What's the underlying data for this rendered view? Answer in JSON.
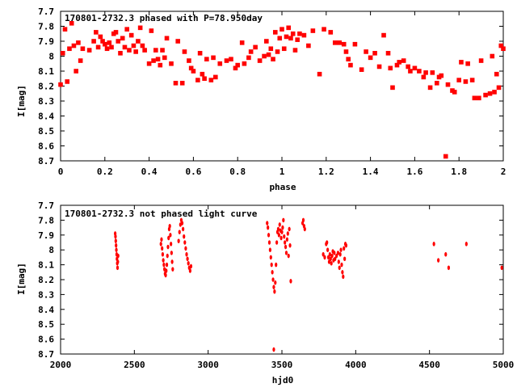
{
  "chart_data": [
    {
      "type": "scatter",
      "title": "170801-2732.3 phased with P=78.950day",
      "xlabel": "phase",
      "ylabel": "I[mag]",
      "xlim": [
        0,
        2
      ],
      "ylim": [
        7.7,
        8.7
      ],
      "y_inverted": true,
      "grid": false,
      "marker_color": "#ff0000",
      "xticks": [
        "0",
        "0.2",
        "0.4",
        "0.6",
        "0.8",
        "1",
        "1.2",
        "1.4",
        "1.6",
        "1.8",
        "2"
      ],
      "yticks": [
        "7.7",
        "7.8",
        "7.9",
        "8",
        "8.1",
        "8.2",
        "8.3",
        "8.4",
        "8.5",
        "8.6",
        "8.7"
      ],
      "points": [
        [
          0.0,
          8.19
        ],
        [
          0.01,
          7.98
        ],
        [
          0.02,
          7.82
        ],
        [
          0.03,
          8.17
        ],
        [
          0.04,
          7.95
        ],
        [
          0.05,
          7.78
        ],
        [
          0.06,
          7.93
        ],
        [
          0.07,
          8.1
        ],
        [
          0.08,
          7.91
        ],
        [
          0.09,
          8.03
        ],
        [
          0.1,
          7.95
        ],
        [
          0.13,
          7.96
        ],
        [
          0.15,
          7.9
        ],
        [
          0.16,
          7.84
        ],
        [
          0.17,
          7.94
        ],
        [
          0.18,
          7.87
        ],
        [
          0.19,
          7.9
        ],
        [
          0.2,
          7.92
        ],
        [
          0.21,
          7.95
        ],
        [
          0.22,
          7.91
        ],
        [
          0.23,
          7.94
        ],
        [
          0.24,
          7.85
        ],
        [
          0.25,
          7.84
        ],
        [
          0.26,
          7.9
        ],
        [
          0.27,
          7.98
        ],
        [
          0.28,
          7.88
        ],
        [
          0.29,
          7.94
        ],
        [
          0.3,
          7.82
        ],
        [
          0.31,
          7.96
        ],
        [
          0.32,
          7.86
        ],
        [
          0.33,
          7.93
        ],
        [
          0.34,
          7.97
        ],
        [
          0.35,
          7.9
        ],
        [
          0.36,
          7.81
        ],
        [
          0.37,
          7.93
        ],
        [
          0.38,
          7.96
        ],
        [
          0.4,
          8.05
        ],
        [
          0.41,
          7.83
        ],
        [
          0.42,
          8.03
        ],
        [
          0.43,
          7.96
        ],
        [
          0.44,
          8.02
        ],
        [
          0.45,
          8.06
        ],
        [
          0.46,
          7.96
        ],
        [
          0.47,
          8.01
        ],
        [
          0.48,
          7.88
        ],
        [
          0.5,
          8.05
        ],
        [
          0.52,
          8.18
        ],
        [
          0.53,
          7.9
        ],
        [
          0.55,
          8.18
        ],
        [
          0.56,
          7.97
        ],
        [
          0.58,
          8.03
        ],
        [
          0.59,
          8.08
        ],
        [
          0.6,
          8.1
        ],
        [
          0.62,
          8.16
        ],
        [
          0.63,
          7.98
        ],
        [
          0.64,
          8.12
        ],
        [
          0.65,
          8.15
        ],
        [
          0.66,
          8.02
        ],
        [
          0.68,
          8.16
        ],
        [
          0.69,
          8.01
        ],
        [
          0.7,
          8.14
        ],
        [
          0.72,
          8.05
        ],
        [
          0.75,
          8.03
        ],
        [
          0.77,
          8.02
        ],
        [
          0.79,
          8.08
        ],
        [
          0.8,
          8.06
        ],
        [
          0.82,
          7.91
        ],
        [
          0.83,
          8.05
        ],
        [
          0.85,
          8.01
        ],
        [
          0.86,
          7.97
        ],
        [
          0.88,
          7.94
        ],
        [
          0.9,
          8.03
        ],
        [
          0.92,
          8.0
        ],
        [
          0.93,
          7.9
        ],
        [
          0.94,
          7.99
        ],
        [
          0.95,
          7.95
        ],
        [
          0.96,
          8.02
        ],
        [
          0.97,
          7.84
        ],
        [
          0.98,
          7.97
        ],
        [
          0.99,
          7.88
        ],
        [
          1.0,
          7.82
        ],
        [
          1.01,
          7.95
        ],
        [
          1.02,
          7.87
        ],
        [
          1.03,
          7.81
        ],
        [
          1.04,
          7.88
        ],
        [
          1.05,
          7.85
        ],
        [
          1.06,
          7.96
        ],
        [
          1.07,
          7.89
        ],
        [
          1.08,
          7.85
        ],
        [
          1.1,
          7.86
        ],
        [
          1.12,
          7.93
        ],
        [
          1.14,
          7.83
        ],
        [
          1.17,
          8.12
        ],
        [
          1.19,
          7.82
        ],
        [
          1.22,
          7.84
        ],
        [
          1.24,
          7.91
        ],
        [
          1.26,
          7.91
        ],
        [
          1.28,
          7.92
        ],
        [
          1.29,
          7.97
        ],
        [
          1.3,
          8.02
        ],
        [
          1.31,
          8.06
        ],
        [
          1.33,
          7.92
        ],
        [
          1.36,
          8.09
        ],
        [
          1.38,
          7.97
        ],
        [
          1.4,
          8.01
        ],
        [
          1.42,
          7.98
        ],
        [
          1.44,
          8.07
        ],
        [
          1.46,
          7.86
        ],
        [
          1.48,
          7.98
        ],
        [
          1.49,
          8.08
        ],
        [
          1.5,
          8.21
        ],
        [
          1.52,
          8.06
        ],
        [
          1.53,
          8.04
        ],
        [
          1.55,
          8.03
        ],
        [
          1.57,
          8.07
        ],
        [
          1.58,
          8.1
        ],
        [
          1.6,
          8.08
        ],
        [
          1.62,
          8.1
        ],
        [
          1.64,
          8.14
        ],
        [
          1.65,
          8.11
        ],
        [
          1.67,
          8.21
        ],
        [
          1.68,
          8.11
        ],
        [
          1.7,
          8.18
        ],
        [
          1.71,
          8.14
        ],
        [
          1.72,
          8.13
        ],
        [
          1.74,
          8.67
        ],
        [
          1.75,
          8.19
        ],
        [
          1.77,
          8.23
        ],
        [
          1.78,
          8.24
        ],
        [
          1.8,
          8.16
        ],
        [
          1.81,
          8.04
        ],
        [
          1.83,
          8.17
        ],
        [
          1.84,
          8.05
        ],
        [
          1.86,
          8.16
        ],
        [
          1.87,
          8.28
        ],
        [
          1.89,
          8.28
        ],
        [
          1.9,
          8.03
        ],
        [
          1.92,
          8.26
        ],
        [
          1.94,
          8.25
        ],
        [
          1.95,
          8.0
        ],
        [
          1.96,
          8.24
        ],
        [
          1.97,
          8.12
        ],
        [
          1.98,
          8.21
        ],
        [
          1.99,
          7.93
        ],
        [
          2.0,
          7.95
        ]
      ]
    },
    {
      "type": "scatter",
      "title": "170801-2732.3 not phased light curve",
      "xlabel": "hjd0",
      "ylabel": "I[mag]",
      "xlim": [
        2000,
        5000
      ],
      "ylim": [
        7.7,
        8.7
      ],
      "y_inverted": true,
      "grid": false,
      "marker_color": "#ff0000",
      "xticks": [
        "2000",
        "2500",
        "3000",
        "3500",
        "4000",
        "4500",
        "5000"
      ],
      "yticks": [
        "7.7",
        "7.8",
        "7.9",
        "8",
        "8.1",
        "8.2",
        "8.3",
        "8.4",
        "8.5",
        "8.6",
        "8.7"
      ],
      "points": [
        [
          2370,
          7.89
        ],
        [
          2372,
          7.91
        ],
        [
          2374,
          7.94
        ],
        [
          2376,
          7.97
        ],
        [
          2378,
          8.0
        ],
        [
          2380,
          8.03
        ],
        [
          2382,
          8.06
        ],
        [
          2384,
          8.09
        ],
        [
          2386,
          8.12
        ],
        [
          2388,
          8.08
        ],
        [
          2390,
          8.04
        ],
        [
          2680,
          7.96
        ],
        [
          2684,
          7.93
        ],
        [
          2688,
          7.99
        ],
        [
          2692,
          8.03
        ],
        [
          2696,
          8.07
        ],
        [
          2700,
          8.1
        ],
        [
          2704,
          8.13
        ],
        [
          2708,
          8.16
        ],
        [
          2712,
          8.17
        ],
        [
          2716,
          8.14
        ],
        [
          2720,
          8.1
        ],
        [
          2724,
          8.04
        ],
        [
          2728,
          7.98
        ],
        [
          2732,
          7.92
        ],
        [
          2736,
          7.86
        ],
        [
          2740,
          7.84
        ],
        [
          2744,
          7.9
        ],
        [
          2748,
          7.96
        ],
        [
          2752,
          8.02
        ],
        [
          2756,
          8.08
        ],
        [
          2760,
          8.13
        ],
        [
          2800,
          7.94
        ],
        [
          2806,
          7.88
        ],
        [
          2812,
          7.83
        ],
        [
          2818,
          7.8
        ],
        [
          2824,
          7.82
        ],
        [
          2830,
          7.86
        ],
        [
          2836,
          7.91
        ],
        [
          2842,
          7.95
        ],
        [
          2848,
          7.99
        ],
        [
          2854,
          8.03
        ],
        [
          2860,
          8.06
        ],
        [
          2866,
          8.09
        ],
        [
          2872,
          8.12
        ],
        [
          2878,
          8.14
        ],
        [
          2884,
          8.11
        ],
        [
          3400,
          7.82
        ],
        [
          3405,
          7.85
        ],
        [
          3410,
          7.9
        ],
        [
          3415,
          7.95
        ],
        [
          3420,
          8.0
        ],
        [
          3425,
          8.05
        ],
        [
          3430,
          8.1
        ],
        [
          3435,
          8.15
        ],
        [
          3440,
          8.2
        ],
        [
          3445,
          8.25
        ],
        [
          3450,
          8.28
        ],
        [
          3455,
          8.22
        ],
        [
          3460,
          8.1
        ],
        [
          3465,
          7.95
        ],
        [
          3470,
          7.88
        ],
        [
          3475,
          7.86
        ],
        [
          3480,
          7.9
        ],
        [
          3485,
          7.83
        ],
        [
          3490,
          7.87
        ],
        [
          3495,
          7.92
        ],
        [
          3500,
          7.88
        ],
        [
          3505,
          7.85
        ],
        [
          3510,
          7.8
        ],
        [
          3515,
          7.91
        ],
        [
          3520,
          7.95
        ],
        [
          3525,
          7.98
        ],
        [
          3530,
          8.02
        ],
        [
          3535,
          7.93
        ],
        [
          3540,
          7.89
        ],
        [
          3545,
          8.04
        ],
        [
          3550,
          7.86
        ],
        [
          3555,
          7.97
        ],
        [
          3560,
          8.21
        ],
        [
          3445,
          8.67
        ],
        [
          3640,
          7.82
        ],
        [
          3645,
          7.8
        ],
        [
          3650,
          7.84
        ],
        [
          3655,
          7.86
        ],
        [
          3780,
          8.03
        ],
        [
          3790,
          8.05
        ],
        [
          3800,
          7.96
        ],
        [
          3805,
          7.95
        ],
        [
          3810,
          8.0
        ],
        [
          3815,
          8.05
        ],
        [
          3820,
          8.08
        ],
        [
          3825,
          8.03
        ],
        [
          3830,
          8.06
        ],
        [
          3835,
          8.09
        ],
        [
          3840,
          8.04
        ],
        [
          3845,
          8.01
        ],
        [
          3850,
          8.07
        ],
        [
          3855,
          8.02
        ],
        [
          3860,
          8.06
        ],
        [
          3870,
          8.04
        ],
        [
          3880,
          8.02
        ],
        [
          3885,
          8.08
        ],
        [
          3890,
          8.12
        ],
        [
          3895,
          8.03
        ],
        [
          3900,
          8.0
        ],
        [
          3905,
          8.1
        ],
        [
          3910,
          8.15
        ],
        [
          3915,
          8.18
        ],
        [
          3920,
          7.99
        ],
        [
          3925,
          8.06
        ],
        [
          3930,
          7.96
        ],
        [
          3935,
          7.97
        ],
        [
          4530,
          7.96
        ],
        [
          4560,
          8.07
        ],
        [
          4610,
          8.03
        ],
        [
          4630,
          8.12
        ],
        [
          4750,
          7.96
        ],
        [
          4990,
          8.12
        ]
      ]
    }
  ]
}
